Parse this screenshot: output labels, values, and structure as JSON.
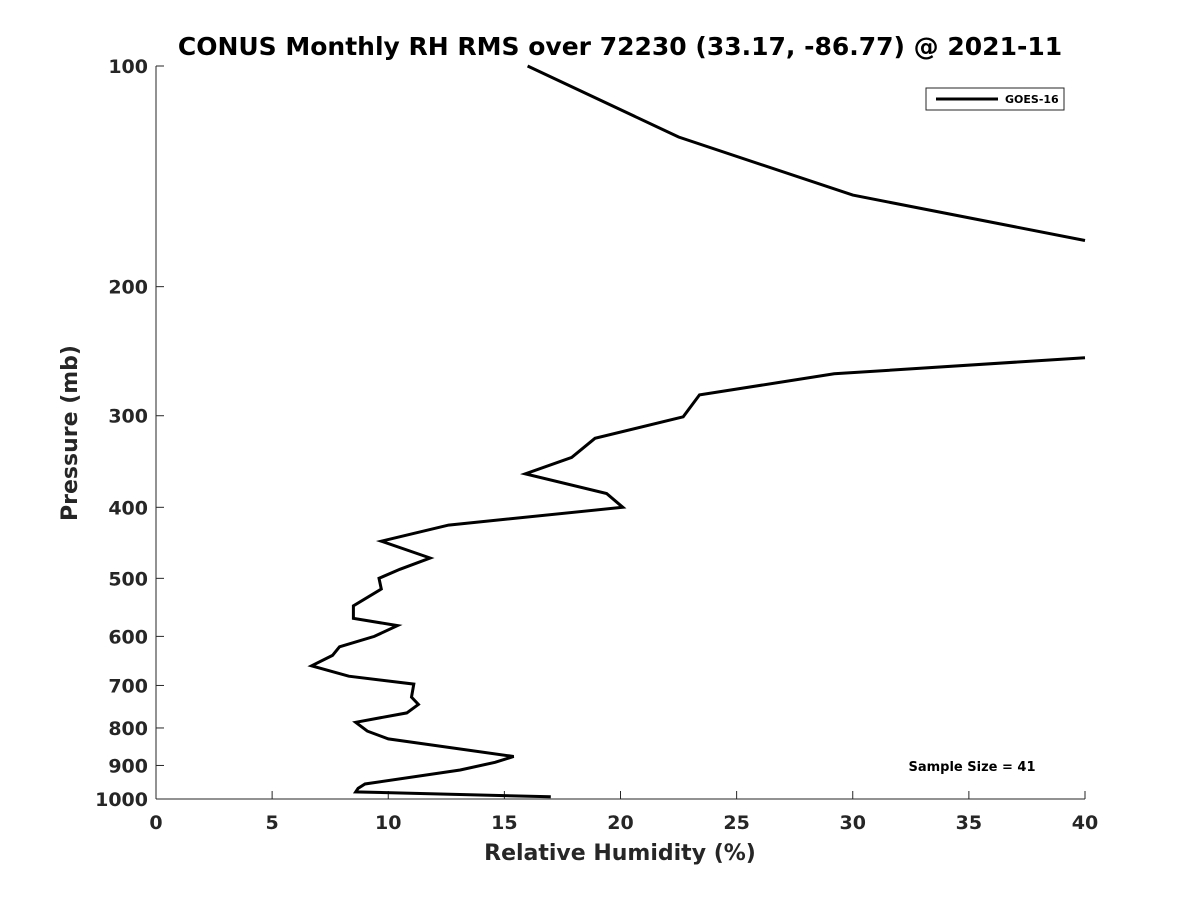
{
  "chart_data": {
    "type": "line",
    "title": "CONUS Monthly RH RMS over 72230 (33.17, -86.77) @ 2021-11",
    "xlabel": "Relative Humidity (%)",
    "ylabel": "Pressure (mb)",
    "xlim": [
      0,
      40
    ],
    "ylim": [
      100,
      1000
    ],
    "y_scale": "log",
    "y_reversed": true,
    "grid": false,
    "x_ticks": [
      0,
      5,
      10,
      15,
      20,
      25,
      30,
      35,
      40
    ],
    "y_ticks": [
      100,
      200,
      300,
      400,
      500,
      600,
      700,
      800,
      900,
      1000
    ],
    "legend": {
      "position": "top-right",
      "entries": [
        "GOES-16"
      ]
    },
    "annotation": "Sample Size = 41",
    "series": [
      {
        "name": "GOES-16",
        "color": "#000000",
        "segments": [
          [
            [
              16.0,
              100
            ],
            [
              22.5,
              125
            ],
            [
              30.0,
              150
            ],
            [
              40.0,
              173
            ]
          ],
          [
            [
              40.0,
              250
            ],
            [
              29.2,
              263
            ],
            [
              23.4,
              281
            ],
            [
              22.7,
              301
            ],
            [
              18.9,
              322
            ],
            [
              17.9,
              342
            ],
            [
              15.9,
              360
            ],
            [
              19.4,
              383
            ],
            [
              20.1,
              400
            ],
            [
              12.6,
              423
            ],
            [
              9.7,
              445
            ],
            [
              11.8,
              469
            ],
            [
              10.5,
              486
            ],
            [
              9.6,
              500
            ],
            [
              9.7,
              517
            ],
            [
              8.5,
              545
            ],
            [
              8.5,
              567
            ],
            [
              10.4,
              580
            ],
            [
              9.4,
              600
            ],
            [
              7.9,
              620
            ],
            [
              7.6,
              637
            ],
            [
              6.7,
              658
            ],
            [
              8.3,
              680
            ],
            [
              11.1,
              697
            ],
            [
              11.0,
              726
            ],
            [
              11.3,
              743
            ],
            [
              10.8,
              763
            ],
            [
              8.6,
              786
            ],
            [
              9.1,
              808
            ],
            [
              10.0,
              828
            ],
            [
              15.4,
              875
            ],
            [
              14.6,
              891
            ],
            [
              13.1,
              913
            ],
            [
              9.0,
              954
            ],
            [
              8.7,
              967
            ],
            [
              8.6,
              978
            ],
            [
              17.0,
              993
            ]
          ]
        ]
      }
    ]
  }
}
